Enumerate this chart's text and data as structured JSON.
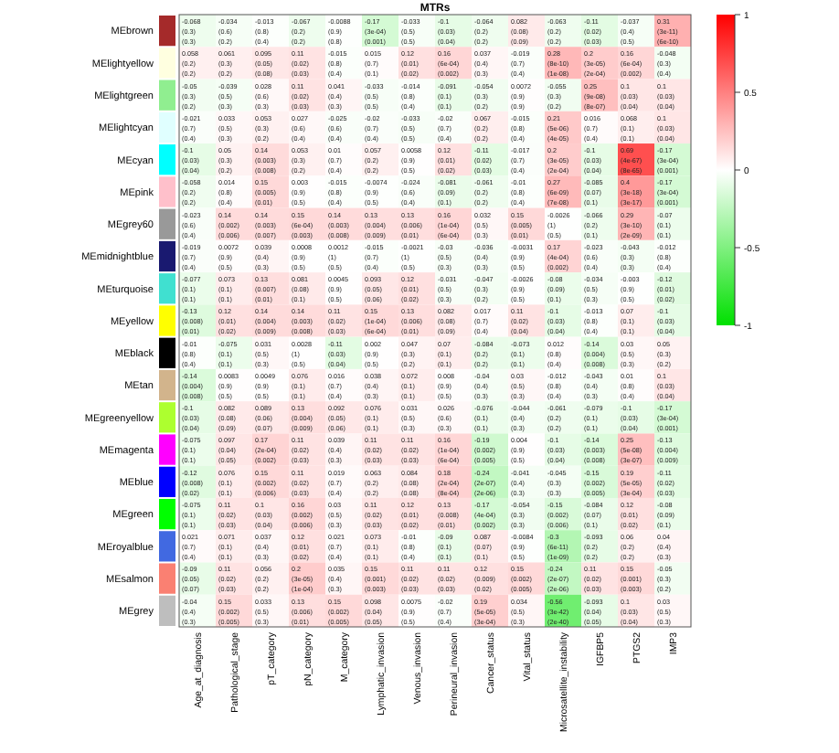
{
  "chart_data": {
    "type": "heatmap",
    "title": "MTRs",
    "categories": [
      "Age_at_diagnosis",
      "Pathological_stage",
      "pT_category",
      "pN_category",
      "M_category",
      "Lymphatic_invasion",
      "Venous_invasion",
      "Perineural_invasion",
      "Cancer_status",
      "Vital_status",
      "Microsatellite_instability",
      "IGFBP5",
      "PTGS2",
      "IMP3"
    ],
    "y_categories": [
      "MEbrown",
      "MElightyellow",
      "MElightgreen",
      "MElightcyan",
      "MEcyan",
      "MEpink",
      "MEgrey60",
      "MEmidnightblue",
      "MEturquoise",
      "MEyellow",
      "MEblack",
      "MEtan",
      "MEgreenyellow",
      "MEmagenta",
      "MEblue",
      "MEgreen",
      "MEroyalblue",
      "MEsalmon",
      "MEgrey"
    ],
    "cells": [
      [
        -0.068,
        -0.034,
        -0.013,
        -0.067,
        -0.0088,
        -0.17,
        -0.033,
        -0.1,
        -0.064,
        0.082,
        -0.063,
        -0.11,
        -0.037,
        0.31
      ],
      [
        0.058,
        0.061,
        0.095,
        0.11,
        -0.015,
        0.015,
        0.12,
        0.16,
        0.037,
        -0.019,
        0.28,
        0.2,
        0.16,
        -0.048
      ],
      [
        -0.05,
        -0.039,
        0.028,
        0.11,
        0.041,
        -0.033,
        -0.014,
        -0.091,
        -0.054,
        0.0072,
        -0.055,
        0.25,
        0.1,
        0.1
      ],
      [
        -0.021,
        0.033,
        0.053,
        0.027,
        -0.025,
        -0.02,
        -0.033,
        -0.02,
        0.067,
        -0.015,
        0.21,
        0.016,
        0.068,
        0.1
      ],
      [
        -0.1,
        0.05,
        0.14,
        0.053,
        0.01,
        0.057,
        0.0058,
        0.12,
        -0.11,
        -0.017,
        0.2,
        -0.1,
        0.69,
        -0.17
      ],
      [
        -0.058,
        0.014,
        0.15,
        0.003,
        -0.015,
        -0.0074,
        -0.024,
        -0.081,
        -0.061,
        -0.01,
        0.27,
        -0.085,
        0.4,
        -0.17
      ],
      [
        -0.023,
        0.14,
        0.14,
        0.15,
        0.14,
        0.13,
        0.13,
        0.16,
        0.032,
        0.15,
        -0.0026,
        -0.066,
        0.29,
        -0.07
      ],
      [
        -0.019,
        0.0072,
        0.039,
        0.0008,
        0.0012,
        -0.015,
        -0.0021,
        -0.03,
        -0.036,
        -0.0031,
        0.17,
        -0.023,
        -0.043,
        -0.012
      ],
      [
        -0.077,
        0.073,
        0.13,
        0.081,
        0.0045,
        0.093,
        0.12,
        -0.031,
        -0.047,
        -0.0026,
        -0.08,
        -0.034,
        -0.003,
        -0.12
      ],
      [
        -0.13,
        0.12,
        0.14,
        0.14,
        0.11,
        0.15,
        0.13,
        0.082,
        0.017,
        0.11,
        -0.1,
        -0.013,
        0.07,
        -0.1
      ],
      [
        -0.01,
        -0.075,
        0.031,
        0.0028,
        -0.11,
        0.002,
        0.047,
        0.07,
        -0.084,
        -0.073,
        0.012,
        -0.14,
        0.03,
        0.05
      ],
      [
        -0.14,
        0.0083,
        0.0049,
        0.076,
        0.016,
        0.038,
        0.072,
        0.008,
        -0.04,
        0.03,
        -0.012,
        -0.043,
        0.01,
        0.1
      ],
      [
        -0.1,
        0.082,
        0.089,
        0.13,
        0.092,
        0.076,
        0.031,
        0.026,
        -0.076,
        -0.044,
        -0.061,
        -0.079,
        -0.1,
        -0.17
      ],
      [
        -0.075,
        0.097,
        0.17,
        0.11,
        0.039,
        0.11,
        0.11,
        0.16,
        -0.19,
        0.004,
        -0.1,
        -0.14,
        0.25,
        -0.13
      ],
      [
        -0.12,
        0.076,
        0.15,
        0.11,
        0.019,
        0.063,
        0.084,
        0.18,
        -0.24,
        -0.041,
        -0.045,
        -0.15,
        0.19,
        -0.11
      ],
      [
        -0.075,
        0.11,
        0.1,
        0.16,
        0.03,
        0.11,
        0.12,
        0.13,
        -0.17,
        -0.054,
        -0.15,
        -0.084,
        0.12,
        -0.08
      ],
      [
        0.021,
        0.071,
        0.037,
        0.12,
        0.021,
        0.073,
        -0.01,
        -0.09,
        0.087,
        -0.0084,
        -0.3,
        -0.093,
        0.06,
        0.04
      ],
      [
        -0.09,
        0.11,
        0.056,
        0.2,
        0.035,
        0.15,
        0.11,
        0.11,
        0.12,
        0.15,
        -0.24,
        0.11,
        0.15,
        -0.05
      ],
      [
        -0.04,
        0.15,
        0.033,
        0.13,
        0.15,
        0.098,
        0.0075,
        -0.02,
        0.19,
        0.034,
        -0.56,
        -0.093,
        0.1,
        0.03
      ]
    ],
    "cell_labels": [
      [
        "-0.068\n(0.3)\n(0.3)",
        "-0.034\n(0.6)\n(0.2)",
        "-0.013\n(0.8)\n(0.4)",
        "-0.067\n(0.2)\n(0.2)",
        "-0.0088\n(0.9)\n(0.8)",
        "-0.17\n(3e-04)\n(0.001)",
        "-0.033\n(0.5)\n(0.5)",
        "-0.1\n(0.03)\n(0.04)",
        "-0.064\n(0.2)\n(0.2)",
        "0.082\n(0.08)\n(0.09)",
        "-0.063\n(0.2)\n(0.2)",
        "-0.11\n(0.02)\n(0.03)",
        "-0.037\n(0.4)\n(0.5)",
        "0.31\n(3e-11)\n(6e-10)"
      ],
      [
        "0.058\n(0.2)\n(0.2)",
        "0.061\n(0.3)\n(0.2)",
        "0.095\n(0.05)\n(0.08)",
        "0.11\n(0.02)\n(0.03)",
        "-0.015\n(0.8)\n(0.4)",
        "0.015\n(0.7)\n(0.1)",
        "0.12\n(0.01)\n(0.02)",
        "0.16\n(6e-04)\n(0.002)",
        "0.037\n(0.4)\n(0.3)",
        "-0.019\n(0.7)\n(0.4)",
        "0.28\n(8e-10)\n(1e-08)",
        "0.2\n(3e-05)\n(2e-04)",
        "0.16\n(6e-04)\n(0.002)",
        "-0.048\n(0.3)\n(0.4)"
      ],
      [
        "-0.05\n(0.3)\n(0.2)",
        "-0.039\n(0.5)\n(0.3)",
        "0.028\n(0.6)\n(0.3)",
        "0.11\n(0.02)\n(0.03)",
        "0.041\n(0.4)\n(0.3)",
        "-0.033\n(0.5)\n(0.5)",
        "-0.014\n(0.8)\n(0.4)",
        "-0.091\n(0.1)\n(0.1)",
        "-0.054\n(0.3)\n(0.2)",
        "0.0072\n(0.9)\n(0.9)",
        "-0.055\n(0.3)\n(0.2)",
        "0.25\n(9e-08)\n(8e-07)",
        "0.1\n(0.03)\n(0.04)",
        "0.1\n(0.03)\n(0.04)"
      ],
      [
        "-0.021\n(0.7)\n(0.4)",
        "0.033\n(0.5)\n(0.3)",
        "0.053\n(0.3)\n(0.2)",
        "0.027\n(0.6)\n(0.4)",
        "-0.025\n(0.6)\n(0.4)",
        "-0.02\n(0.7)\n(0.4)",
        "-0.033\n(0.5)\n(0.5)",
        "-0.02\n(0.7)\n(0.4)",
        "0.067\n(0.2)\n(0.2)",
        "-0.015\n(0.8)\n(0.4)",
        "0.21\n(5e-06)\n(4e-05)",
        "0.016\n(0.7)\n(0.4)",
        "0.068\n(0.1)\n(0.1)",
        "0.1\n(0.03)\n(0.04)"
      ],
      [
        "-0.1\n(0.03)\n(0.04)",
        "0.05\n(0.3)\n(0.2)",
        "0.14\n(0.003)\n(0.008)",
        "0.053\n(0.3)\n(0.2)",
        "0.01\n(0.7)\n(0.4)",
        "0.057\n(0.2)\n(0.2)",
        "0.0058\n(0.9)\n(0.5)",
        "0.12\n(0.01)\n(0.02)",
        "-0.11\n(0.02)\n(0.03)",
        "-0.017\n(0.7)\n(0.4)",
        "0.2\n(3e-05)\n(2e-04)",
        "-0.1\n(0.03)\n(0.04)",
        "0.69\n(4e-67)\n(8e-65)",
        "-0.17\n(3e-04)\n(0.001)"
      ],
      [
        "-0.058\n(0.2)\n(0.2)",
        "0.014\n(0.8)\n(0.4)",
        "0.15\n(0.005)\n(0.01)",
        "0.003\n(0.9)\n(0.5)",
        "-0.015\n(0.8)\n(0.4)",
        "-0.0074\n(0.9)\n(0.5)",
        "-0.024\n(0.6)\n(0.4)",
        "-0.081\n(0.09)\n(0.1)",
        "-0.061\n(0.2)\n(0.2)",
        "-0.01\n(0.8)\n(0.4)",
        "0.27\n(6e-09)\n(7e-08)",
        "-0.085\n(0.07)\n(0.1)",
        "0.4\n(3e-18)\n(3e-17)",
        "-0.17\n(3e-04)\n(0.001)"
      ],
      [
        "-0.023\n(0.6)\n(0.4)",
        "0.14\n(0.002)\n(0.006)",
        "0.14\n(0.003)\n(0.007)",
        "0.15\n(6e-04)\n(0.003)",
        "0.14\n(0.003)\n(0.008)",
        "0.13\n(0.004)\n(0.009)",
        "0.13\n(0.006)\n(0.01)",
        "0.16\n(1e-04)\n(6e-04)",
        "0.032\n(0.5)\n(0.3)",
        "0.15\n(0.005)\n(0.01)",
        "-0.0026\n(1)\n(0.5)",
        "-0.066\n(0.2)\n(0.1)",
        "0.29\n(3e-10)\n(2e-09)",
        "-0.07\n(0.1)\n(0.1)"
      ],
      [
        "-0.019\n(0.7)\n(0.4)",
        "0.0072\n(0.9)\n(0.5)",
        "0.039\n(0.4)\n(0.3)",
        "0.0008\n(0.9)\n(0.5)",
        "0.0012\n(1)\n(0.5)",
        "-0.015\n(0.7)\n(0.4)",
        "-0.0021\n(1)\n(0.5)",
        "-0.03\n(0.5)\n(0.3)",
        "-0.036\n(0.4)\n(0.3)",
        "-0.0031\n(0.9)\n(0.5)",
        "0.17\n(4e-04)\n(0.002)",
        "-0.023\n(0.6)\n(0.4)",
        "-0.043\n(0.3)\n(0.3)",
        "-0.012\n(0.8)\n(0.4)"
      ],
      [
        "-0.077\n(0.1)\n(0.1)",
        "0.073\n(0.1)\n(0.1)",
        "0.13\n(0.007)\n(0.01)",
        "0.081\n(0.08)\n(0.1)",
        "0.0045\n(0.9)\n(0.5)",
        "0.093\n(0.05)\n(0.06)",
        "0.12\n(0.01)\n(0.02)",
        "-0.031\n(0.5)\n(0.3)",
        "-0.047\n(0.3)\n(0.2)",
        "-0.0026\n(0.9)\n(0.5)",
        "-0.08\n(0.09)\n(0.1)",
        "-0.034\n(0.5)\n(0.3)",
        "-0.003\n(0.9)\n(0.5)",
        "-0.12\n(0.01)\n(0.02)"
      ],
      [
        "-0.13\n(0.008)\n(0.01)",
        "0.12\n(0.01)\n(0.02)",
        "0.14\n(0.004)\n(0.009)",
        "0.14\n(0.003)\n(0.008)",
        "0.11\n(0.02)\n(0.03)",
        "0.15\n(1e-04)\n(6e-04)",
        "0.13\n(0.006)\n(0.01)",
        "0.082\n(0.08)\n(0.09)",
        "0.017\n(0.7)\n(0.4)",
        "0.11\n(0.02)\n(0.04)",
        "-0.1\n(0.03)\n(0.04)",
        "-0.013\n(0.8)\n(0.4)",
        "0.07\n(0.1)\n(0.1)",
        "-0.1\n(0.03)\n(0.04)"
      ],
      [
        "-0.01\n(0.8)\n(0.4)",
        "-0.075\n(0.1)\n(0.1)",
        "0.031\n(0.5)\n(0.3)",
        "0.0028\n(1)\n(0.5)",
        "-0.11\n(0.03)\n(0.04)",
        "0.002\n(0.9)\n(0.5)",
        "0.047\n(0.3)\n(0.2)",
        "0.07\n(0.1)\n(0.1)",
        "-0.084\n(0.2)\n(0.2)",
        "-0.073\n(0.1)\n(0.1)",
        "0.012\n(0.8)\n(0.4)",
        "-0.14\n(0.004)\n(0.008)",
        "0.03\n(0.5)\n(0.3)",
        "0.05\n(0.3)\n(0.2)"
      ],
      [
        "-0.14\n(0.004)\n(0.008)",
        "0.0083\n(0.9)\n(0.5)",
        "0.0049\n(0.9)\n(0.5)",
        "0.076\n(0.1)\n(0.1)",
        "0.016\n(0.7)\n(0.4)",
        "0.038\n(0.4)\n(0.3)",
        "0.072\n(0.1)\n(0.1)",
        "0.008\n(0.9)\n(0.5)",
        "-0.04\n(0.4)\n(0.3)",
        "0.03\n(0.5)\n(0.3)",
        "-0.012\n(0.8)\n(0.4)",
        "-0.043\n(0.4)\n(0.3)",
        "0.01\n(0.8)\n(0.4)",
        "0.1\n(0.03)\n(0.04)"
      ],
      [
        "-0.1\n(0.03)\n(0.04)",
        "0.082\n(0.08)\n(0.09)",
        "0.089\n(0.06)\n(0.07)",
        "0.13\n(0.004)\n(0.009)",
        "0.092\n(0.05)\n(0.06)",
        "0.076\n(0.1)\n(0.1)",
        "0.031\n(0.5)\n(0.3)",
        "0.026\n(0.6)\n(0.3)",
        "-0.076\n(0.1)\n(0.1)",
        "-0.044\n(0.4)\n(0.3)",
        "-0.061\n(0.2)\n(0.2)",
        "-0.079\n(0.1)\n(0.1)",
        "-0.1\n(0.03)\n(0.04)",
        "-0.17\n(3e-04)\n(0.001)"
      ],
      [
        "-0.075\n(0.1)\n(0.1)",
        "0.097\n(0.04)\n(0.05)",
        "0.17\n(2e-04)\n(0.002)",
        "0.11\n(0.02)\n(0.03)",
        "0.039\n(0.4)\n(0.3)",
        "0.11\n(0.02)\n(0.03)",
        "0.11\n(0.02)\n(0.03)",
        "0.16\n(1e-04)\n(6e-04)",
        "-0.19\n(0.002)\n(0.005)",
        "0.004\n(0.9)\n(0.5)",
        "-0.1\n(0.03)\n(0.04)",
        "-0.14\n(0.003)\n(0.008)",
        "0.25\n(5e-08)\n(3e-07)",
        "-0.13\n(0.004)\n(0.009)"
      ],
      [
        "-0.12\n(0.008)\n(0.02)",
        "0.076\n(0.1)\n(0.1)",
        "0.15\n(0.002)\n(0.006)",
        "0.11\n(0.02)\n(0.03)",
        "0.019\n(0.7)\n(0.4)",
        "0.063\n(0.2)\n(0.2)",
        "0.084\n(0.08)\n(0.08)",
        "0.18\n(2e-04)\n(8e-04)",
        "-0.24\n(2e-07)\n(2e-06)",
        "-0.041\n(0.4)\n(0.3)",
        "-0.045\n(0.3)\n(0.3)",
        "-0.15\n(0.002)\n(0.005)",
        "0.19\n(5e-05)\n(3e-04)",
        "-0.11\n(0.02)\n(0.03)"
      ],
      [
        "-0.075\n(0.1)\n(0.1)",
        "0.11\n(0.02)\n(0.03)",
        "0.1\n(0.03)\n(0.04)",
        "0.16\n(0.002)\n(0.006)",
        "0.03\n(0.5)\n(0.3)",
        "0.11\n(0.02)\n(0.03)",
        "0.12\n(0.01)\n(0.02)",
        "0.13\n(0.008)\n(0.01)",
        "-0.17\n(4e-04)\n(0.002)",
        "-0.054\n(0.3)\n(0.3)",
        "-0.15\n(0.002)\n(0.006)",
        "-0.084\n(0.07)\n(0.1)",
        "0.12\n(0.01)\n(0.02)",
        "-0.08\n(0.09)\n(0.1)"
      ],
      [
        "0.021\n(0.7)\n(0.4)",
        "0.071\n(0.1)\n(0.1)",
        "0.037\n(0.4)\n(0.3)",
        "0.12\n(0.01)\n(0.02)",
        "0.021\n(0.7)\n(0.4)",
        "0.073\n(0.1)\n(0.1)",
        "-0.01\n(0.8)\n(0.4)",
        "-0.09\n(0.1)\n(0.1)",
        "0.087\n(0.07)\n(0.1)",
        "-0.0084\n(0.9)\n(0.5)",
        "-0.3\n(6e-11)\n(1e-09)",
        "-0.093\n(0.2)\n(0.2)",
        "0.06\n(0.2)\n(0.2)",
        "0.04\n(0.4)\n(0.3)"
      ],
      [
        "-0.09\n(0.05)\n(0.07)",
        "0.11\n(0.02)\n(0.03)",
        "0.056\n(0.2)\n(0.2)",
        "0.2\n(3e-05)\n(1e-04)",
        "0.035\n(0.4)\n(0.3)",
        "0.15\n(0.001)\n(0.003)",
        "0.11\n(0.02)\n(0.03)",
        "0.11\n(0.02)\n(0.03)",
        "0.12\n(0.009)\n(0.02)",
        "0.15\n(0.002)\n(0.005)",
        "-0.24\n(2e-07)\n(2e-06)",
        "0.11\n(0.02)\n(0.03)",
        "0.15\n(0.001)\n(0.003)",
        "-0.05\n(0.3)\n(0.2)"
      ],
      [
        "-0.04\n(0.4)\n(0.3)",
        "0.15\n(0.002)\n(0.005)",
        "0.033\n(0.5)\n(0.3)",
        "0.13\n(0.006)\n(0.01)",
        "0.15\n(0.002)\n(0.005)",
        "0.098\n(0.04)\n(0.05)",
        "0.0075\n(0.9)\n(0.5)",
        "-0.02\n(0.7)\n(0.4)",
        "0.19\n(5e-05)\n(3e-04)",
        "0.034\n(0.5)\n(0.3)",
        "-0.56\n(3e-42)\n(2e-40)",
        "-0.093\n(0.04)\n(0.05)",
        "0.1\n(0.03)\n(0.04)",
        "0.03\n(0.5)\n(0.3)"
      ]
    ],
    "clim": [
      -1,
      1
    ],
    "cticks": [
      -1,
      -0.5,
      0,
      0.5,
      1
    ]
  }
}
